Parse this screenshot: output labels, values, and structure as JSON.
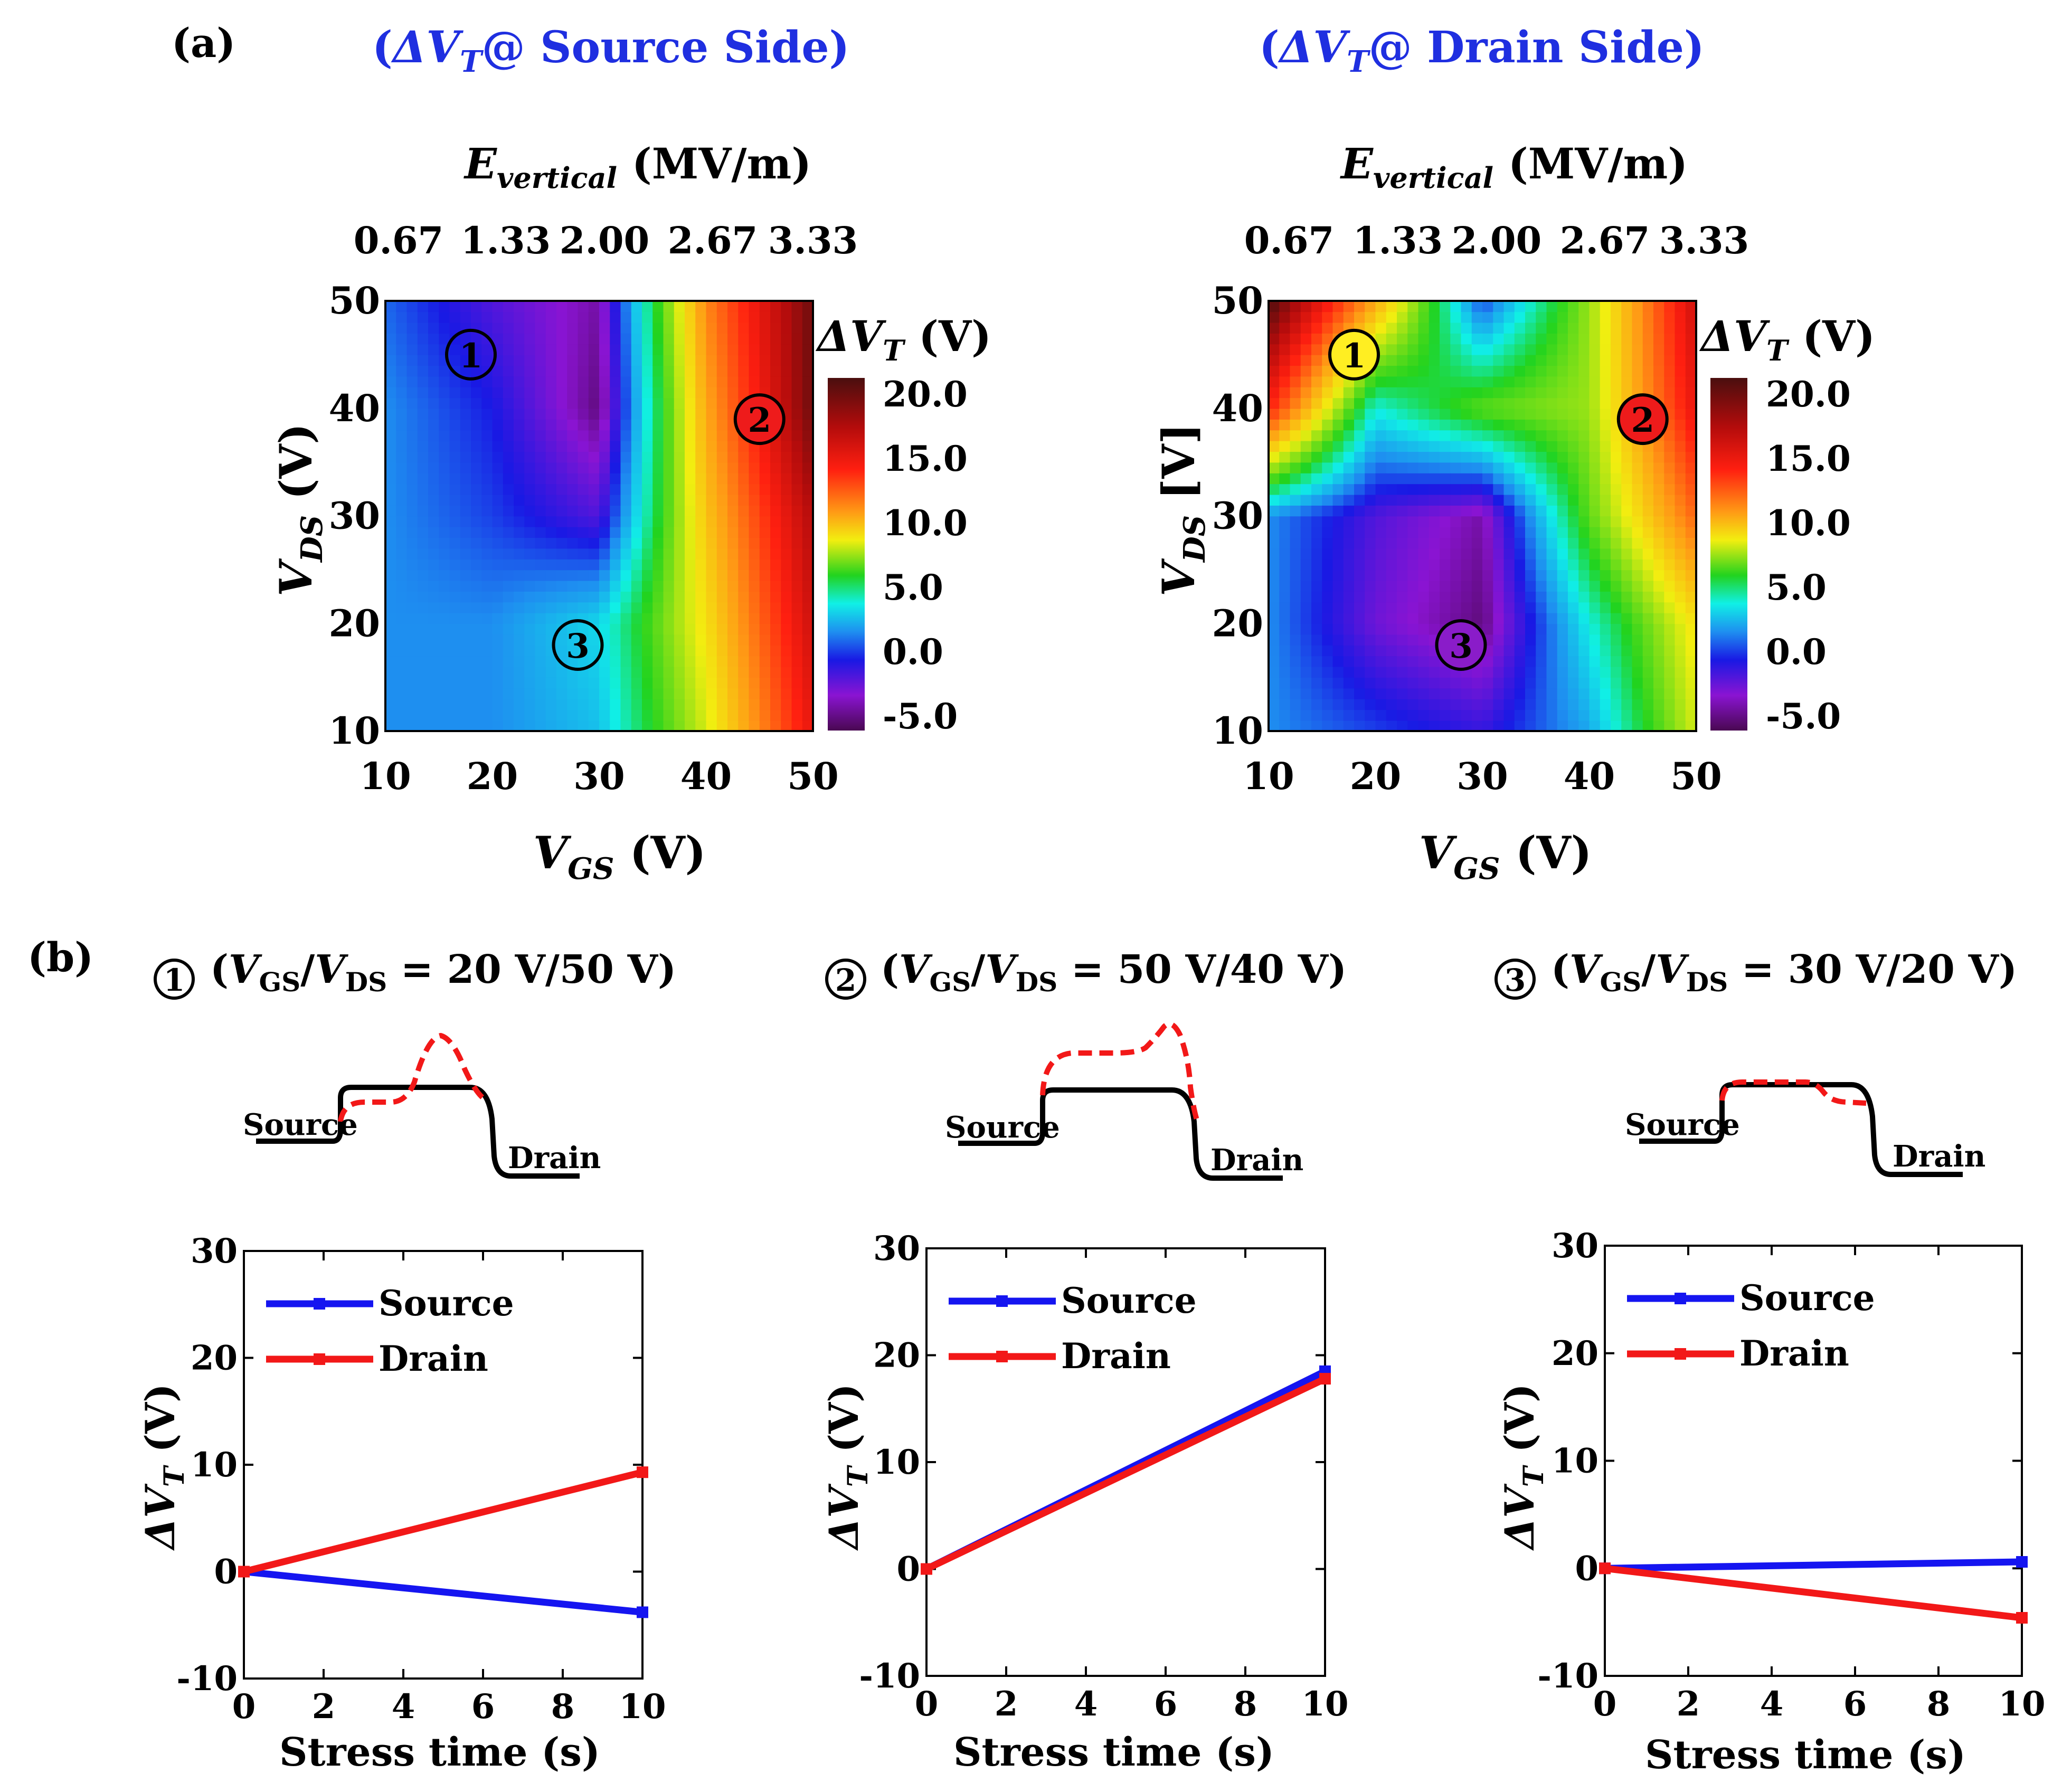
{
  "panel_a": {
    "label": "(a)",
    "maps": [
      {
        "title": "(ΔV_T@ Source Side)",
        "title_parts": {
          "open": "(",
          "delta_v": "ΔV",
          "sub_t": "T",
          "rest": "@ Source Side)"
        },
        "top_axis_label": {
          "e": "E",
          "sub": "vertical",
          "unit": " (MV/m)"
        },
        "top_ticks": [
          "0.67",
          "1.33",
          "2.00",
          "2.67",
          "3.33"
        ],
        "x_label": {
          "v": "V",
          "sub": "GS",
          "unit": " (V)"
        },
        "y_label": {
          "v": "V",
          "sub": "DS",
          "unit": " (V)"
        },
        "x_ticks": [
          "10",
          "20",
          "30",
          "40",
          "50"
        ],
        "y_ticks": [
          "10",
          "20",
          "30",
          "40",
          "50"
        ],
        "colorbar_title": {
          "dv": "ΔV",
          "sub": "T",
          "unit": " (V)"
        },
        "colorbar_ticks": [
          "20.0",
          "15.0",
          "10.0",
          "5.0",
          "0.0",
          "-5.0"
        ],
        "markers": [
          {
            "text": "1",
            "vgs": 18,
            "vds": 45,
            "fill": "none"
          },
          {
            "text": "2",
            "vgs": 45,
            "vds": 39,
            "fill": "#ee1b1b"
          },
          {
            "text": "3",
            "vgs": 28,
            "vds": 18,
            "fill": "none"
          }
        ]
      },
      {
        "title": "(ΔV_T@ Drain Side)",
        "title_parts": {
          "open": "(",
          "delta_v": "ΔV",
          "sub_t": "T",
          "rest": "@ Drain Side)"
        },
        "top_axis_label": {
          "e": "E",
          "sub": "vertical",
          "unit": " (MV/m)"
        },
        "top_ticks": [
          "0.67",
          "1.33",
          "2.00",
          "2.67",
          "3.33"
        ],
        "x_label": {
          "v": "V",
          "sub": "GS",
          "unit": " (V)"
        },
        "y_label": {
          "v": "V",
          "sub": "DS",
          "unit": " [V]"
        },
        "x_ticks": [
          "10",
          "20",
          "30",
          "40",
          "50"
        ],
        "y_ticks": [
          "10",
          "20",
          "30",
          "40",
          "50"
        ],
        "colorbar_title": {
          "dv": "ΔV",
          "sub": "T",
          "unit": " (V)"
        },
        "colorbar_ticks": [
          "20.0",
          "15.0",
          "10.0",
          "5.0",
          "0.0",
          "-5.0"
        ],
        "markers": [
          {
            "text": "1",
            "vgs": 18,
            "vds": 45,
            "fill": "#ffee22"
          },
          {
            "text": "2",
            "vgs": 45,
            "vds": 39,
            "fill": "#ee1b1b"
          },
          {
            "text": "3",
            "vgs": 28,
            "vds": 18,
            "fill": "#8a1cc9"
          }
        ]
      }
    ]
  },
  "panel_b": {
    "label": "(b)",
    "cases": [
      {
        "num": "1",
        "cond_open": "(",
        "v1": "V",
        "s1": "GS",
        "slash": "/",
        "v2": "V",
        "s2": "DS",
        "cond_rest": " = 20 V/50 V)",
        "profile_source": "Source",
        "profile_drain": "Drain"
      },
      {
        "num": "2",
        "cond_open": "(",
        "v1": "V",
        "s1": "GS",
        "slash": "/",
        "v2": "V",
        "s2": "DS",
        "cond_rest": " = 50 V/40 V)",
        "profile_source": "Source",
        "profile_drain": "Drain"
      },
      {
        "num": "3",
        "cond_open": "(",
        "v1": "V",
        "s1": "GS",
        "slash": "/",
        "v2": "V",
        "s2": "DS",
        "cond_rest": " = 30 V/20 V)",
        "profile_source": "Source",
        "profile_drain": "Drain"
      }
    ],
    "y_label": {
      "dv": "ΔV",
      "sub": "T",
      "unit": " (V)"
    },
    "x_label": "Stress time (s)",
    "x_ticks": [
      "0",
      "2",
      "4",
      "6",
      "8",
      "10"
    ],
    "y_ticks": [
      "30",
      "20",
      "10",
      "0",
      "-10"
    ]
  },
  "chart_data": [
    {
      "type": "heatmap",
      "title": "ΔV_T @ Source Side",
      "xlabel": "V_GS (V)",
      "ylabel": "V_DS (V)",
      "top_axis": "E_vertical (MV/m)",
      "xlim": [
        10,
        50
      ],
      "ylim": [
        10,
        50
      ],
      "colorbar_label": "ΔV_T (V)",
      "zlim": [
        -5,
        20
      ],
      "x": [
        10,
        20,
        30,
        40,
        50
      ],
      "y": [
        10,
        20,
        30,
        40,
        50
      ],
      "z": [
        [
          0,
          0,
          1,
          7,
          15
        ],
        [
          0,
          0,
          1.5,
          8,
          16
        ],
        [
          0,
          -1,
          -2.5,
          9,
          17
        ],
        [
          0,
          -1.5,
          -4.5,
          10,
          19
        ],
        [
          -0.5,
          -2.5,
          -4,
          11,
          19
        ]
      ]
    },
    {
      "type": "heatmap",
      "title": "ΔV_T @ Drain Side",
      "xlabel": "V_GS (V)",
      "ylabel": "V_DS [V]",
      "top_axis": "E_vertical (MV/m)",
      "xlim": [
        10,
        50
      ],
      "ylim": [
        10,
        50
      ],
      "colorbar_label": "ΔV_T (V)",
      "zlim": [
        -5,
        20
      ],
      "x": [
        10,
        20,
        30,
        40,
        50
      ],
      "y": [
        10,
        20,
        30,
        40,
        50
      ],
      "z": [
        [
          0,
          -1,
          -2,
          0.5,
          7
        ],
        [
          0,
          -3,
          -4.5,
          2,
          8
        ],
        [
          0,
          -2.5,
          -4,
          5,
          12
        ],
        [
          14,
          2,
          5,
          6,
          15
        ],
        [
          20,
          10,
          -1,
          6,
          16
        ]
      ]
    },
    {
      "type": "line",
      "title": "(V_GS/V_DS = 20 V/50 V)",
      "xlabel": "Stress time (s)",
      "ylabel": "ΔV_T (V)",
      "xlim": [
        0,
        10
      ],
      "ylim": [
        -10,
        30
      ],
      "series": [
        {
          "name": "Source",
          "color": "#1515f0",
          "x": [
            0,
            10
          ],
          "values": [
            0,
            -3.8
          ]
        },
        {
          "name": "Drain",
          "color": "#f21818",
          "x": [
            0,
            10
          ],
          "values": [
            0,
            9.3
          ]
        }
      ]
    },
    {
      "type": "line",
      "title": "(V_GS/V_DS = 50 V/40 V)",
      "xlabel": "Stress time (s)",
      "ylabel": "ΔV_T (V)",
      "xlim": [
        0,
        10
      ],
      "ylim": [
        -10,
        30
      ],
      "series": [
        {
          "name": "Source",
          "color": "#1515f0",
          "x": [
            0,
            10
          ],
          "values": [
            0,
            18.5
          ]
        },
        {
          "name": "Drain",
          "color": "#f21818",
          "x": [
            0,
            10
          ],
          "values": [
            0,
            17.8
          ]
        }
      ]
    },
    {
      "type": "line",
      "title": "(V_GS/V_DS = 30 V/20 V)",
      "xlabel": "Stress time (s)",
      "ylabel": "ΔV_T (V)",
      "xlim": [
        0,
        10
      ],
      "ylim": [
        -10,
        30
      ],
      "series": [
        {
          "name": "Source",
          "color": "#1515f0",
          "x": [
            0,
            10
          ],
          "values": [
            0,
            0.6
          ]
        },
        {
          "name": "Drain",
          "color": "#f21818",
          "x": [
            0,
            10
          ],
          "values": [
            0,
            -4.6
          ]
        }
      ]
    }
  ]
}
